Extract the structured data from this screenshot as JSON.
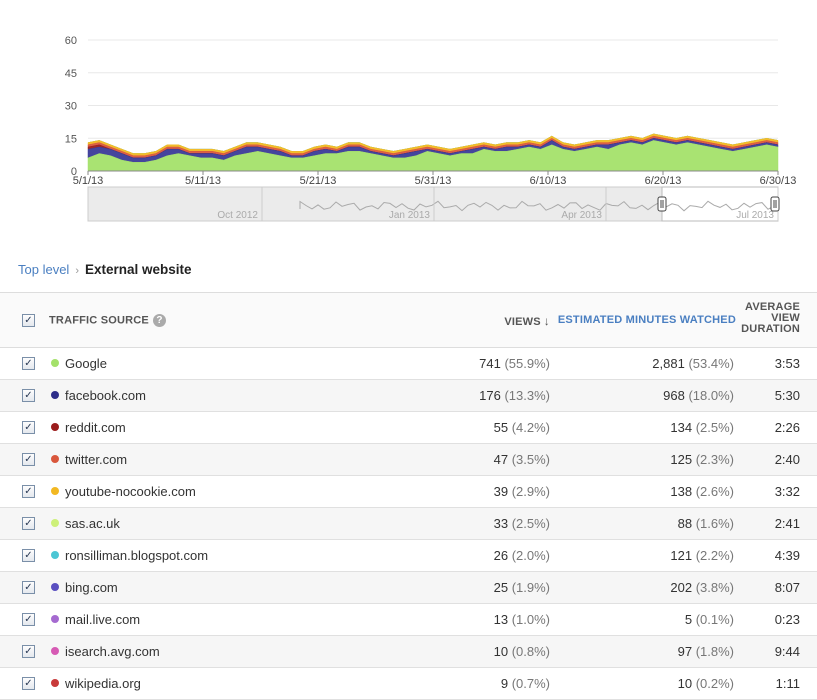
{
  "chart_data": {
    "type": "area",
    "stacked": true,
    "x_tick_labels": [
      "5/1/13",
      "5/11/13",
      "5/21/13",
      "5/31/13",
      "6/10/13",
      "6/20/13",
      "6/30/13"
    ],
    "y_tick_labels": [
      "0",
      "15",
      "30",
      "45",
      "60"
    ],
    "ylim": [
      0,
      60
    ],
    "grid": true,
    "series": [
      {
        "name": "Google",
        "color": "#a4e16a",
        "values": [
          6,
          8,
          7,
          5,
          4,
          4,
          5,
          7,
          8,
          7,
          6,
          6,
          5,
          7,
          8,
          9,
          8,
          7,
          6,
          6,
          7,
          8,
          8,
          9,
          9,
          8,
          7,
          6,
          6,
          7,
          9,
          8,
          7,
          8,
          8,
          10,
          9,
          9,
          10,
          11,
          10,
          12,
          10,
          9,
          10,
          11,
          10,
          12,
          13,
          12,
          14,
          13,
          12,
          13,
          12,
          11,
          10,
          9,
          10,
          11,
          12,
          11
        ]
      },
      {
        "name": "facebook.com",
        "color": "#3b3b98",
        "values": [
          4,
          3,
          3,
          3,
          2,
          2,
          2,
          3,
          2,
          1,
          2,
          2,
          2,
          2,
          3,
          2,
          2,
          2,
          1,
          1,
          2,
          2,
          1,
          2,
          2,
          1,
          1,
          1,
          2,
          2,
          1,
          1,
          1,
          1,
          2,
          1,
          1,
          2,
          1,
          1,
          1,
          2,
          1,
          1,
          1,
          1,
          2,
          1,
          1,
          1,
          1,
          1,
          1,
          1,
          1,
          1,
          1,
          1,
          1,
          1,
          1,
          1
        ]
      },
      {
        "name": "reddit.com",
        "color": "#9b1c1c",
        "values": [
          1,
          1,
          0,
          0,
          0,
          0,
          0,
          0,
          0,
          0,
          0,
          0,
          0,
          0,
          0,
          0,
          0,
          0,
          0,
          0,
          0,
          0,
          0,
          0,
          0,
          0,
          0,
          0,
          0,
          0,
          0,
          0,
          0,
          0,
          0,
          0,
          0,
          0,
          0,
          0,
          0,
          0,
          0,
          0,
          0,
          0,
          0,
          0,
          0,
          0,
          0,
          0,
          0,
          0,
          0,
          0,
          0,
          0,
          0,
          0,
          0,
          0
        ]
      },
      {
        "name": "twitter.com",
        "color": "#d9573c",
        "values": [
          1,
          1,
          1,
          1,
          1,
          1,
          1,
          1,
          1,
          1,
          1,
          1,
          1,
          1,
          1,
          1,
          1,
          1,
          1,
          1,
          1,
          1,
          1,
          1,
          1,
          1,
          1,
          1,
          1,
          1,
          1,
          1,
          1,
          1,
          1,
          1,
          1,
          1,
          1,
          1,
          1,
          1,
          1,
          1,
          1,
          1,
          1,
          1,
          1,
          1,
          1,
          1,
          1,
          1,
          1,
          1,
          1,
          1,
          1,
          1,
          1,
          1
        ]
      },
      {
        "name": "youtube-nocookie.com",
        "color": "#f2b822",
        "values": [
          1,
          1,
          1,
          1,
          1,
          1,
          1,
          1,
          1,
          1,
          1,
          1,
          1,
          1,
          1,
          1,
          1,
          1,
          1,
          1,
          1,
          1,
          1,
          1,
          1,
          1,
          1,
          1,
          1,
          1,
          1,
          1,
          1,
          1,
          1,
          1,
          1,
          1,
          1,
          1,
          1,
          1,
          1,
          1,
          1,
          1,
          1,
          1,
          1,
          1,
          1,
          1,
          1,
          1,
          1,
          1,
          1,
          1,
          1,
          1,
          1,
          1
        ]
      },
      {
        "name": "sas.ac.uk",
        "color": "#cdf079",
        "values": [
          0,
          0,
          0,
          0,
          0,
          0,
          0,
          0,
          0,
          0,
          0,
          0,
          0,
          0,
          0,
          0,
          0,
          0,
          0,
          0,
          0,
          0,
          0,
          0,
          0,
          0,
          0,
          0,
          0,
          0,
          0,
          0,
          0,
          0,
          0,
          0,
          0,
          0,
          0,
          0,
          0,
          0,
          0,
          0,
          0,
          0,
          0,
          0,
          0,
          0,
          0,
          0,
          0,
          0,
          0,
          0,
          0,
          0,
          0,
          0,
          0,
          0
        ]
      },
      {
        "name": "ronsilliman.blogspot.com",
        "color": "#4cc6d4",
        "values": [
          0,
          0,
          0,
          0,
          0,
          0,
          0,
          0,
          0,
          0,
          0,
          0,
          0,
          0,
          0,
          0,
          0,
          0,
          0,
          0,
          0,
          0,
          0,
          0,
          0,
          0,
          0,
          0,
          0,
          0,
          0,
          0,
          0,
          0,
          0,
          0,
          0,
          0,
          0,
          0,
          0,
          0,
          0,
          0,
          0,
          0,
          0,
          0,
          0,
          0,
          0,
          0,
          0,
          0,
          0,
          0,
          0,
          0,
          0,
          0,
          0,
          0
        ]
      },
      {
        "name": "bing.com",
        "color": "#5a4fc0",
        "values": [
          0,
          0,
          0,
          0,
          0,
          0,
          0,
          0,
          0,
          0,
          0,
          0,
          0,
          0,
          0,
          0,
          0,
          0,
          0,
          0,
          0,
          0,
          0,
          0,
          0,
          0,
          0,
          0,
          0,
          0,
          0,
          0,
          0,
          0,
          0,
          0,
          0,
          0,
          0,
          0,
          0,
          0,
          0,
          0,
          0,
          0,
          0,
          0,
          0,
          0,
          0,
          0,
          0,
          0,
          0,
          0,
          0,
          0,
          0,
          0,
          0,
          0
        ]
      }
    ],
    "overview_labels": [
      "Oct 2012",
      "Jan 2013",
      "Apr 2013",
      "Jul 2013"
    ]
  },
  "breadcrumb": {
    "top_level": "Top level",
    "separator": "›",
    "current": "External website"
  },
  "table": {
    "headers": {
      "traffic_source": "TRAFFIC SOURCE",
      "views": "VIEWS",
      "estimated_minutes": "ESTIMATED MINUTES WATCHED",
      "avg_line1": "AVERAGE",
      "avg_line2": "VIEW",
      "avg_line3": "DURATION",
      "help": "?",
      "sort_arrow": "↓",
      "check": "✓"
    },
    "rows": [
      {
        "source": "Google",
        "color": "#a4e16a",
        "views": "741",
        "views_pct": "(55.9%)",
        "mins": "2,881",
        "mins_pct": "(53.4%)",
        "avd": "3:53"
      },
      {
        "source": "facebook.com",
        "color": "#2e2e8a",
        "views": "176",
        "views_pct": "(13.3%)",
        "mins": "968",
        "mins_pct": "(18.0%)",
        "avd": "5:30"
      },
      {
        "source": "reddit.com",
        "color": "#9b1c1c",
        "views": "55",
        "views_pct": "(4.2%)",
        "mins": "134",
        "mins_pct": "(2.5%)",
        "avd": "2:26"
      },
      {
        "source": "twitter.com",
        "color": "#d9573c",
        "views": "47",
        "views_pct": "(3.5%)",
        "mins": "125",
        "mins_pct": "(2.3%)",
        "avd": "2:40"
      },
      {
        "source": "youtube-nocookie.com",
        "color": "#f2b822",
        "views": "39",
        "views_pct": "(2.9%)",
        "mins": "138",
        "mins_pct": "(2.6%)",
        "avd": "3:32"
      },
      {
        "source": "sas.ac.uk",
        "color": "#cdf079",
        "views": "33",
        "views_pct": "(2.5%)",
        "mins": "88",
        "mins_pct": "(1.6%)",
        "avd": "2:41"
      },
      {
        "source": "ronsilliman.blogspot.com",
        "color": "#4cc6d4",
        "views": "26",
        "views_pct": "(2.0%)",
        "mins": "121",
        "mins_pct": "(2.2%)",
        "avd": "4:39"
      },
      {
        "source": "bing.com",
        "color": "#5a4fc0",
        "views": "25",
        "views_pct": "(1.9%)",
        "mins": "202",
        "mins_pct": "(3.8%)",
        "avd": "8:07"
      },
      {
        "source": "mail.live.com",
        "color": "#a56ad0",
        "views": "13",
        "views_pct": "(1.0%)",
        "mins": "5",
        "mins_pct": "(0.1%)",
        "avd": "0:23"
      },
      {
        "source": "isearch.avg.com",
        "color": "#d65ab4",
        "views": "10",
        "views_pct": "(0.8%)",
        "mins": "97",
        "mins_pct": "(1.8%)",
        "avd": "9:44"
      },
      {
        "source": "wikipedia.org",
        "color": "#c83a3a",
        "views": "9",
        "views_pct": "(0.7%)",
        "mins": "10",
        "mins_pct": "(0.2%)",
        "avd": "1:11"
      }
    ]
  }
}
